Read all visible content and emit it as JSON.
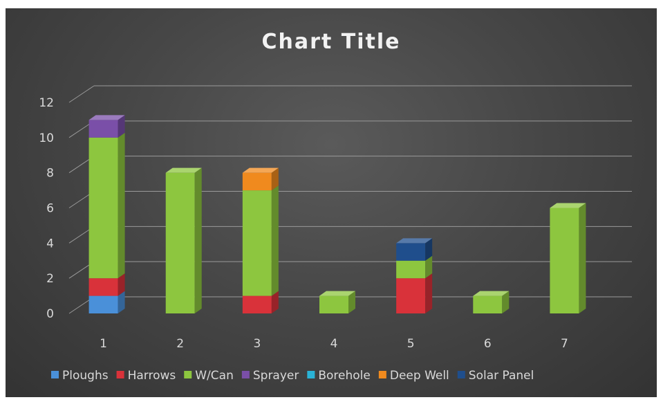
{
  "chart_data": {
    "type": "bar",
    "stacked": true,
    "three_d": true,
    "title": "Chart Title",
    "categories": [
      "1",
      "2",
      "3",
      "4",
      "5",
      "6",
      "7"
    ],
    "y_ticks": [
      "0",
      "2",
      "4",
      "6",
      "8",
      "10",
      "12"
    ],
    "ylim": [
      0,
      12
    ],
    "grid": true,
    "legend_position": "bottom",
    "background": "#404040",
    "series": [
      {
        "name": "Ploughs",
        "color": "#4a90d9",
        "values": [
          1,
          0,
          0,
          0,
          0,
          0,
          0
        ]
      },
      {
        "name": "Harrows",
        "color": "#d9323a",
        "values": [
          1,
          0,
          1,
          0,
          2,
          0,
          0
        ]
      },
      {
        "name": "W/Can",
        "color": "#8dc63f",
        "values": [
          8,
          8,
          6,
          1,
          1,
          1,
          6
        ]
      },
      {
        "name": "Sprayer",
        "color": "#7a4fa8",
        "values": [
          1,
          0,
          0,
          0,
          0,
          0,
          0
        ]
      },
      {
        "name": "Borehole",
        "color": "#2ab3d6",
        "values": [
          0,
          0,
          0,
          0,
          0,
          0,
          0
        ]
      },
      {
        "name": "Deep Well",
        "color": "#f08a1e",
        "values": [
          0,
          0,
          1,
          0,
          0,
          0,
          0
        ]
      },
      {
        "name": "Solar Panel",
        "color": "#1f4e8c",
        "values": [
          0,
          0,
          0,
          0,
          1,
          0,
          0
        ]
      }
    ]
  }
}
